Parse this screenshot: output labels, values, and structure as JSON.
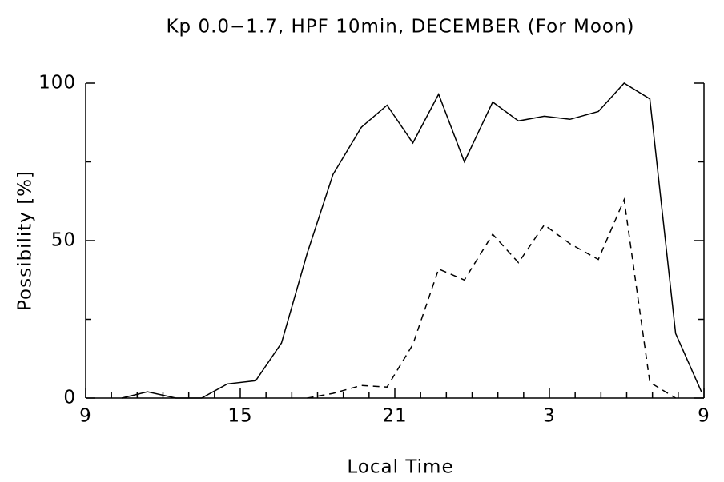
{
  "chart_data": {
    "type": "line",
    "title": "Kp 0.0−1.7, HPF 10min, DECEMBER (For Moon)",
    "x_label": "Local Time",
    "y_label": "Possibility [%]",
    "xlim": [
      9,
      33
    ],
    "xticks": [
      9,
      15,
      21,
      {
        "value": 27,
        "label": "3"
      },
      {
        "value": 33,
        "label": "9"
      }
    ],
    "ylim": [
      0,
      100
    ],
    "yticks": [
      0,
      50,
      100
    ],
    "series": [
      {
        "name": "solid",
        "color": "#000000",
        "dash": false,
        "x": [
          10.4,
          11.4,
          12.5,
          13.5,
          14.5,
          15.6,
          16.6,
          17.6,
          18.6,
          19.7,
          20.7,
          21.7,
          22.7,
          23.7,
          24.8,
          25.8,
          26.8,
          27.8,
          28.9,
          29.9,
          30.9,
          31.9,
          32.9
        ],
        "values": [
          0,
          2,
          0,
          0,
          4.5,
          5.5,
          17.5,
          46,
          71,
          86,
          93,
          81,
          96.5,
          75,
          94,
          88,
          89.5,
          88.5,
          91,
          100,
          95,
          20.5,
          2
        ]
      },
      {
        "name": "dashed",
        "color": "#000000",
        "dash": true,
        "x": [
          17.6,
          18.6,
          19.7,
          20.7,
          21.7,
          22.7,
          23.7,
          24.8,
          25.8,
          26.8,
          27.8,
          28.9,
          29.9,
          30.9,
          31.9
        ],
        "values": [
          0,
          1.5,
          4,
          3.5,
          17,
          41,
          37.5,
          52,
          43,
          55,
          49,
          44,
          63,
          5,
          0
        ]
      }
    ]
  }
}
